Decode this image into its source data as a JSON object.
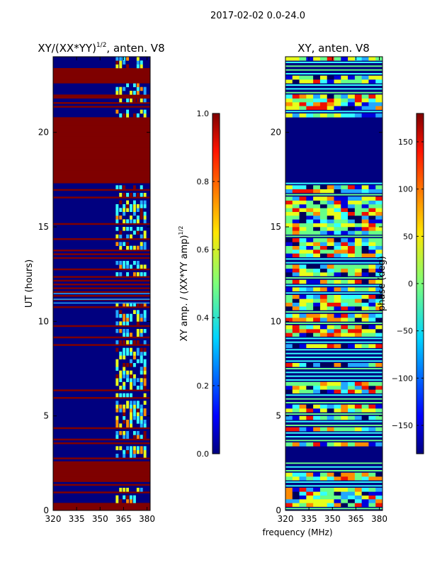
{
  "suptitle": "2017-02-02 0.0-24.0",
  "xlabel_shared": "frequency (MHz)",
  "colors": {
    "navy": "#00007f",
    "dark_red": "#7f0000",
    "cyan": "#33ffff",
    "yellow": "#e8ff1a",
    "light_blue": "#22a8ff",
    "orange": "#ff8c00",
    "red": "#ee1100",
    "green": "#66ff88",
    "blue": "#0000dd",
    "dark_navy": "#00005a"
  },
  "chart_data": [
    {
      "type": "heatmap",
      "title": "XY/(XX*YY)",
      "title_sup": "1/2",
      "title_suffix": ", anten. V8",
      "ylabel": "UT (hours)",
      "xlim": [
        320,
        382
      ],
      "ylim": [
        0,
        24
      ],
      "xticks": [
        "320",
        "335",
        "350",
        "365",
        "380"
      ],
      "xtick_values": [
        320,
        335,
        350,
        365,
        380
      ],
      "yticks": [
        "0",
        "5",
        "10",
        "15",
        "20"
      ],
      "ytick_values": [
        0,
        5,
        10,
        15,
        20
      ],
      "solid_bands": [
        {
          "from": 0.0,
          "to": 0.35,
          "color": "dark_red"
        },
        {
          "from": 1.55,
          "to": 2.55,
          "color": "dark_red"
        },
        {
          "from": 17.4,
          "to": 20.8,
          "color": "dark_red"
        },
        {
          "from": 21.7,
          "to": 22.0,
          "color": "dark_red"
        },
        {
          "from": 22.5,
          "to": 23.3,
          "color": "dark_red"
        }
      ],
      "structured_region_mhz": [
        360,
        380
      ]
    },
    {
      "type": "heatmap",
      "title": "XY, anten. V8",
      "ylabel": "",
      "xlim": [
        320,
        382
      ],
      "ylim": [
        0,
        24
      ],
      "xticks": [
        "320",
        "335",
        "350",
        "365",
        "380"
      ],
      "xtick_values": [
        320,
        335,
        350,
        365,
        380
      ],
      "yticks": [
        "0",
        "5",
        "10",
        "15",
        "20"
      ],
      "ytick_values": [
        0,
        5,
        10,
        15,
        20
      ],
      "solid_bands": [
        {
          "from": 2.55,
          "to": 3.4,
          "color": "navy"
        },
        {
          "from": 17.4,
          "to": 20.8,
          "color": "navy"
        }
      ]
    }
  ],
  "colorbars": [
    {
      "label": "XY amp. / (XX*YY amp)",
      "label_sup": "1/2",
      "range": [
        0,
        1
      ],
      "tick_values": [
        0.0,
        0.2,
        0.4,
        0.6,
        0.8,
        1.0
      ],
      "ticks": [
        "0.0",
        "0.2",
        "0.4",
        "0.6",
        "0.8",
        "1.0"
      ]
    },
    {
      "label": "phase (deg)",
      "range": [
        -180,
        180
      ],
      "tick_values": [
        -150,
        -100,
        -50,
        0,
        50,
        100,
        150
      ],
      "ticks": [
        "−150",
        "−100",
        "−50",
        "0",
        "50",
        "100",
        "150"
      ]
    }
  ]
}
